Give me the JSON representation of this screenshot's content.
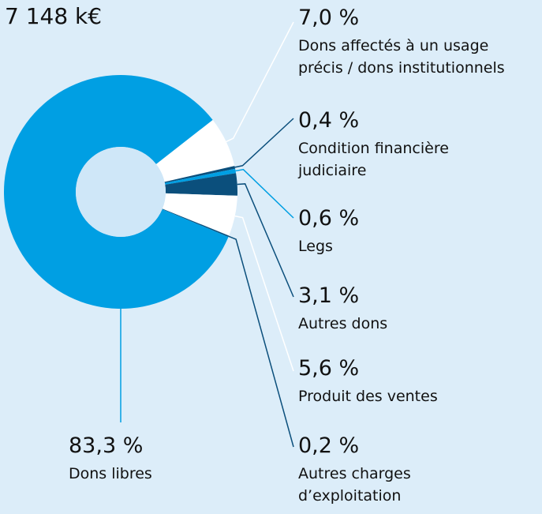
{
  "chart_data": {
    "type": "donut",
    "title": "7 148 k€",
    "categories": [
      "Dons affectés à un usage\nprécis / dons institutionnels",
      "Condition financière\njudiciaire",
      "Legs",
      "Autres dons",
      "Produit des ventes",
      "Autres charges\nd’exploitation",
      "Dons libres"
    ],
    "values": [
      7.0,
      0.4,
      0.6,
      3.1,
      5.6,
      0.2,
      83.3
    ],
    "value_labels": [
      "7,0 %",
      "0,4 %",
      "0,6 %",
      "3,1 %",
      "5,6 %",
      "0,2 %",
      "83,3 %"
    ],
    "colors": [
      "#ffffff",
      "#0b4f7c",
      "#009fe3",
      "#0b4f7c",
      "#ffffff",
      "#0b4f7c",
      "#009fe3"
    ]
  }
}
